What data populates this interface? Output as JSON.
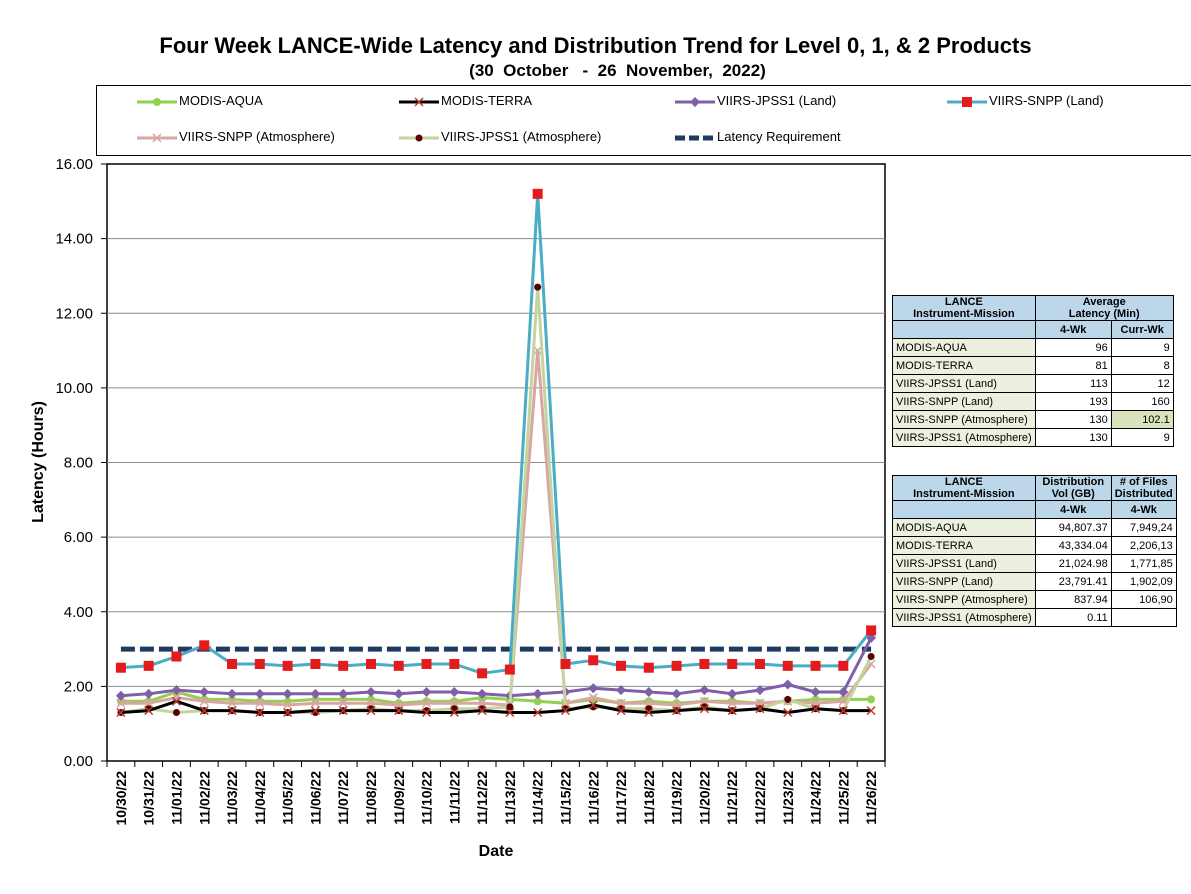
{
  "title": "Four Week LANCE-Wide Latency and Distribution Trend for Level 0, 1, & 2 Products",
  "subtitle": "(30  October   -  26  November,  2022)",
  "legend": [
    {
      "name": "MODIS-AQUA"
    },
    {
      "name": "MODIS-TERRA"
    },
    {
      "name": "VIIRS-JPSS1 (Land)"
    },
    {
      "name": "VIIRS-SNPP (Land)"
    },
    {
      "name": "VIIRS-SNPP (Atmosphere)"
    },
    {
      "name": "VIIRS-JPSS1 (Atmosphere)"
    },
    {
      "name": "Latency Requirement"
    }
  ],
  "colors": {
    "modis_aqua": "#92d050",
    "modis_terra": "#000000",
    "viirs_jpss1_land": "#7f5fa8",
    "viirs_snpp_land": "#4bacc6",
    "viirs_snpp_land_marker": "#e41a1c",
    "viirs_snpp_atm": "#d9a6a4",
    "viirs_jpss1_atm": "#c4d49e",
    "viirs_jpss1_atm_marker": "#5a0000",
    "requirement": "#1f3a5f"
  },
  "chart_data": {
    "type": "line",
    "ylabel": "Latency (Hours)",
    "xlabel": "Date",
    "ylim": [
      0,
      16
    ],
    "yticks": [
      "0.00",
      "2.00",
      "4.00",
      "6.00",
      "8.00",
      "10.00",
      "12.00",
      "14.00",
      "16.00"
    ],
    "grid": true,
    "categories": [
      "10/30/22",
      "10/31/22",
      "11/01/22",
      "11/02/22",
      "11/03/22",
      "11/04/22",
      "11/05/22",
      "11/06/22",
      "11/07/22",
      "11/08/22",
      "11/09/22",
      "11/10/22",
      "11/11/22",
      "11/12/22",
      "11/13/22",
      "11/14/22",
      "11/15/22",
      "11/16/22",
      "11/17/22",
      "11/18/22",
      "11/19/22",
      "11/20/22",
      "11/21/22",
      "11/22/22",
      "11/23/22",
      "11/24/22",
      "11/25/22",
      "11/26/22"
    ],
    "series": [
      {
        "name": "MODIS-AQUA",
        "values": [
          1.6,
          1.6,
          1.85,
          1.65,
          1.65,
          1.6,
          1.6,
          1.65,
          1.65,
          1.65,
          1.55,
          1.6,
          1.6,
          1.7,
          1.65,
          1.6,
          1.55,
          1.65,
          1.55,
          1.6,
          1.55,
          1.6,
          1.6,
          1.55,
          1.6,
          1.65,
          1.65,
          1.65
        ]
      },
      {
        "name": "MODIS-TERRA",
        "values": [
          1.3,
          1.35,
          1.6,
          1.35,
          1.35,
          1.3,
          1.3,
          1.35,
          1.35,
          1.35,
          1.35,
          1.3,
          1.3,
          1.35,
          1.3,
          1.3,
          1.35,
          1.5,
          1.35,
          1.3,
          1.35,
          1.4,
          1.35,
          1.4,
          1.3,
          1.4,
          1.35,
          1.35
        ]
      },
      {
        "name": "VIIRS-JPSS1 (Land)",
        "values": [
          1.75,
          1.8,
          1.9,
          1.85,
          1.8,
          1.8,
          1.8,
          1.8,
          1.8,
          1.85,
          1.8,
          1.85,
          1.85,
          1.8,
          1.75,
          1.8,
          1.85,
          1.95,
          1.9,
          1.85,
          1.8,
          1.9,
          1.8,
          1.9,
          2.05,
          1.85,
          1.85,
          3.3
        ]
      },
      {
        "name": "VIIRS-SNPP (Land)",
        "values": [
          2.5,
          2.55,
          2.8,
          3.1,
          2.6,
          2.6,
          2.55,
          2.6,
          2.55,
          2.6,
          2.55,
          2.6,
          2.6,
          2.35,
          2.45,
          15.2,
          2.6,
          2.7,
          2.55,
          2.5,
          2.55,
          2.6,
          2.6,
          2.6,
          2.55,
          2.55,
          2.55,
          3.5
        ]
      },
      {
        "name": "VIIRS-SNPP (Atmosphere)",
        "values": [
          1.55,
          1.55,
          1.7,
          1.6,
          1.55,
          1.55,
          1.5,
          1.55,
          1.55,
          1.55,
          1.5,
          1.55,
          1.55,
          1.55,
          1.5,
          11.0,
          1.55,
          1.7,
          1.55,
          1.55,
          1.5,
          1.6,
          1.55,
          1.55,
          1.6,
          1.55,
          1.6,
          2.6
        ]
      },
      {
        "name": "VIIRS-JPSS1 (Atmosphere)",
        "values": [
          1.3,
          1.4,
          1.3,
          1.35,
          1.35,
          1.3,
          1.3,
          1.3,
          1.35,
          1.4,
          1.35,
          1.35,
          1.4,
          1.4,
          1.45,
          12.7,
          1.4,
          1.45,
          1.4,
          1.4,
          1.35,
          1.45,
          1.35,
          1.4,
          1.65,
          1.4,
          1.35,
          2.8
        ]
      },
      {
        "name": "Latency Requirement",
        "values": [
          3,
          3,
          3,
          3,
          3,
          3,
          3,
          3,
          3,
          3,
          3,
          3,
          3,
          3,
          3,
          3,
          3,
          3,
          3,
          3,
          3,
          3,
          3,
          3,
          3,
          3,
          3,
          3
        ]
      }
    ]
  },
  "table1": {
    "head_col1": [
      "LANCE",
      "Instrument-Mission"
    ],
    "head_col2": [
      "Average",
      "Latency (Min)"
    ],
    "sub_4wk": "4-Wk",
    "sub_currwk": "Curr-Wk",
    "rows": [
      {
        "name": "MODIS-AQUA",
        "wk4": "96",
        "curr": "9"
      },
      {
        "name": "MODIS-TERRA",
        "wk4": "81",
        "curr": "8"
      },
      {
        "name": "VIIRS-JPSS1 (Land)",
        "wk4": "113",
        "curr": "12"
      },
      {
        "name": "VIIRS-SNPP (Land)",
        "wk4": "193",
        "curr": "160"
      },
      {
        "name": "VIIRS-SNPP (Atmosphere)",
        "wk4": "130",
        "curr": "102.1"
      },
      {
        "name": "VIIRS-JPSS1 (Atmosphere)",
        "wk4": "130",
        "curr": "9"
      }
    ]
  },
  "table2": {
    "head_col1": [
      "LANCE",
      "Instrument-Mission"
    ],
    "head_col2": [
      "Distribution",
      "Vol (GB)"
    ],
    "head_col3": [
      "# of Files",
      "Distributed"
    ],
    "sub_vol": "4-Wk",
    "sub_files": "4-Wk",
    "rows": [
      {
        "name": "MODIS-AQUA",
        "vol": "94,807.37",
        "files": "7,949,24"
      },
      {
        "name": "MODIS-TERRA",
        "vol": "43,334.04",
        "files": "2,206,13"
      },
      {
        "name": "VIIRS-JPSS1 (Land)",
        "vol": "21,024.98",
        "files": "1,771,85"
      },
      {
        "name": "VIIRS-SNPP (Land)",
        "vol": "23,791.41",
        "files": "1,902,09"
      },
      {
        "name": "VIIRS-SNPP (Atmosphere)",
        "vol": "837.94",
        "files": "106,90"
      },
      {
        "name": "VIIRS-JPSS1 (Atmosphere)",
        "vol": "0.11",
        "files": ""
      }
    ]
  }
}
